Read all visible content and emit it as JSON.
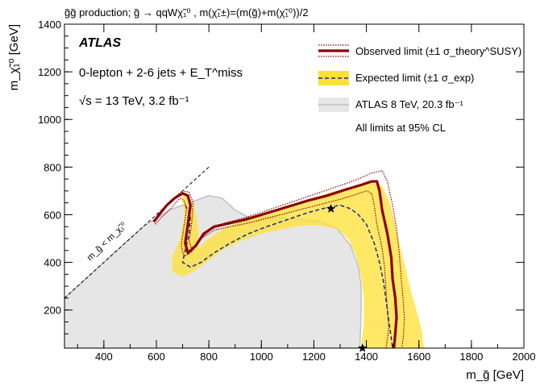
{
  "chart_data": {
    "type": "line",
    "title": "g̃g̃ production; g̃ → qqWχ̃₁⁰ , m(χ̃₁±)=(m(g̃)+m(χ̃₁⁰))/2",
    "xlabel": "m_g̃ [GeV]",
    "ylabel": "m_χ̃₁⁰ [GeV]",
    "xlim": [
      250,
      2000
    ],
    "ylim": [
      40,
      1400
    ],
    "x_ticks": [
      400,
      600,
      800,
      1000,
      1200,
      1400,
      1600,
      1800,
      2000
    ],
    "y_ticks": [
      200,
      400,
      600,
      800,
      1000,
      1200,
      1400
    ],
    "grid": false,
    "legend_position": "top-right",
    "annotations": {
      "experiment": "ATLAS",
      "selection": "0-lepton + 2-6 jets + E_T^miss",
      "energy": "√s = 13 TeV, 3.2 fb⁻¹",
      "diagonal": "m_g̃ < m_χ̃₁⁰",
      "cl_note": "All limits at 95% CL"
    },
    "legend": [
      "Observed limit (±1 σ_theory^SUSY)",
      "Expected limit (±1 σ_exp)",
      "ATLAS 8 TeV, 20.3 fb⁻¹"
    ],
    "series": [
      {
        "name": "Observed limit",
        "color": "#8b0000",
        "points": [
          [
            590,
            570
          ],
          [
            610,
            600
          ],
          [
            640,
            640
          ],
          [
            670,
            670
          ],
          [
            700,
            690
          ],
          [
            720,
            680
          ],
          [
            730,
            640
          ],
          [
            720,
            560
          ],
          [
            710,
            480
          ],
          [
            720,
            440
          ],
          [
            750,
            470
          ],
          [
            780,
            520
          ],
          [
            820,
            550
          ],
          [
            880,
            565
          ],
          [
            940,
            580
          ],
          [
            1000,
            600
          ],
          [
            1060,
            620
          ],
          [
            1120,
            640
          ],
          [
            1180,
            660
          ],
          [
            1250,
            680
          ],
          [
            1320,
            705
          ],
          [
            1380,
            725
          ],
          [
            1420,
            740
          ],
          [
            1440,
            740
          ],
          [
            1450,
            700
          ],
          [
            1460,
            620
          ],
          [
            1480,
            520
          ],
          [
            1495,
            420
          ],
          [
            1500,
            330
          ],
          [
            1510,
            250
          ],
          [
            1515,
            170
          ],
          [
            1510,
            100
          ],
          [
            1505,
            40
          ]
        ]
      },
      {
        "name": "Observed +1σ theory",
        "color": "#8b0000",
        "points": [
          [
            590,
            575
          ],
          [
            620,
            620
          ],
          [
            660,
            665
          ],
          [
            700,
            700
          ],
          [
            725,
            695
          ],
          [
            740,
            650
          ],
          [
            735,
            570
          ],
          [
            725,
            490
          ],
          [
            735,
            455
          ],
          [
            760,
            485
          ],
          [
            800,
            535
          ],
          [
            860,
            565
          ],
          [
            930,
            585
          ],
          [
            1000,
            610
          ],
          [
            1080,
            640
          ],
          [
            1160,
            670
          ],
          [
            1240,
            700
          ],
          [
            1320,
            730
          ],
          [
            1380,
            755
          ],
          [
            1420,
            775
          ],
          [
            1460,
            785
          ],
          [
            1480,
            740
          ],
          [
            1500,
            640
          ],
          [
            1515,
            540
          ],
          [
            1525,
            440
          ],
          [
            1532,
            340
          ],
          [
            1540,
            240
          ],
          [
            1545,
            160
          ],
          [
            1540,
            80
          ],
          [
            1535,
            40
          ]
        ]
      },
      {
        "name": "Observed -1σ theory",
        "color": "#8b0000",
        "points": [
          [
            595,
            560
          ],
          [
            620,
            590
          ],
          [
            650,
            620
          ],
          [
            690,
            670
          ],
          [
            705,
            660
          ],
          [
            715,
            625
          ],
          [
            705,
            550
          ],
          [
            695,
            470
          ],
          [
            705,
            425
          ],
          [
            735,
            445
          ],
          [
            770,
            500
          ],
          [
            820,
            535
          ],
          [
            880,
            550
          ],
          [
            950,
            565
          ],
          [
            1020,
            585
          ],
          [
            1090,
            605
          ],
          [
            1160,
            625
          ],
          [
            1230,
            645
          ],
          [
            1300,
            665
          ],
          [
            1360,
            685
          ],
          [
            1400,
            700
          ],
          [
            1420,
            690
          ],
          [
            1430,
            640
          ],
          [
            1440,
            560
          ],
          [
            1460,
            460
          ],
          [
            1470,
            370
          ],
          [
            1475,
            280
          ],
          [
            1480,
            200
          ],
          [
            1485,
            120
          ],
          [
            1475,
            40
          ]
        ]
      },
      {
        "name": "Expected limit",
        "color": "#1a2a8c",
        "points": [
          [
            710,
            640
          ],
          [
            730,
            600
          ],
          [
            725,
            520
          ],
          [
            710,
            450
          ],
          [
            700,
            400
          ],
          [
            730,
            380
          ],
          [
            770,
            400
          ],
          [
            820,
            440
          ],
          [
            880,
            480
          ],
          [
            950,
            520
          ],
          [
            1020,
            550
          ],
          [
            1100,
            580
          ],
          [
            1180,
            610
          ],
          [
            1250,
            630
          ],
          [
            1300,
            640
          ],
          [
            1340,
            625
          ],
          [
            1370,
            600
          ],
          [
            1400,
            560
          ],
          [
            1430,
            480
          ],
          [
            1450,
            400
          ],
          [
            1465,
            320
          ],
          [
            1475,
            240
          ],
          [
            1485,
            160
          ],
          [
            1495,
            80
          ],
          [
            1500,
            40
          ]
        ]
      },
      {
        "name": "Expected -1σ edge",
        "color": "#ffe033",
        "points": [
          [
            700,
            700
          ],
          [
            740,
            650
          ],
          [
            760,
            550
          ],
          [
            760,
            460
          ],
          [
            800,
            500
          ],
          [
            870,
            550
          ],
          [
            950,
            580
          ],
          [
            1050,
            610
          ],
          [
            1150,
            650
          ],
          [
            1250,
            690
          ],
          [
            1350,
            720
          ],
          [
            1420,
            735
          ],
          [
            1460,
            720
          ],
          [
            1490,
            650
          ],
          [
            1510,
            560
          ],
          [
            1530,
            460
          ],
          [
            1550,
            370
          ],
          [
            1570,
            280
          ],
          [
            1590,
            200
          ],
          [
            1610,
            120
          ],
          [
            1620,
            40
          ]
        ]
      },
      {
        "name": "Expected +1σ edge",
        "color": "#ffe033",
        "points": [
          [
            1380,
            40
          ],
          [
            1390,
            150
          ],
          [
            1390,
            250
          ],
          [
            1380,
            340
          ],
          [
            1360,
            430
          ],
          [
            1330,
            500
          ],
          [
            1290,
            540
          ],
          [
            1230,
            555
          ],
          [
            1160,
            555
          ],
          [
            1080,
            540
          ],
          [
            1000,
            520
          ],
          [
            920,
            490
          ],
          [
            850,
            450
          ],
          [
            790,
            400
          ],
          [
            740,
            360
          ],
          [
            700,
            340
          ],
          [
            660,
            360
          ],
          [
            660,
            420
          ],
          [
            690,
            500
          ],
          [
            710,
            600
          ],
          [
            700,
            650
          ]
        ]
      },
      {
        "name": "ATLAS 8 TeV, 20.3 fb⁻¹",
        "color": "#c8c8c8",
        "points": [
          [
            250,
            40
          ],
          [
            250,
            250
          ],
          [
            350,
            350
          ],
          [
            450,
            450
          ],
          [
            550,
            550
          ],
          [
            650,
            620
          ],
          [
            750,
            660
          ],
          [
            800,
            680
          ],
          [
            850,
            670
          ],
          [
            900,
            620
          ],
          [
            950,
            590
          ],
          [
            1050,
            590
          ],
          [
            1150,
            580
          ],
          [
            1230,
            570
          ],
          [
            1290,
            540
          ],
          [
            1340,
            470
          ],
          [
            1370,
            380
          ],
          [
            1380,
            300
          ],
          [
            1380,
            200
          ],
          [
            1375,
            40
          ]
        ]
      }
    ],
    "stars": [
      [
        1265,
        625
      ],
      [
        1385,
        40
      ]
    ],
    "diagonal_line": [
      [
        250,
        250
      ],
      [
        800,
        800
      ]
    ]
  }
}
